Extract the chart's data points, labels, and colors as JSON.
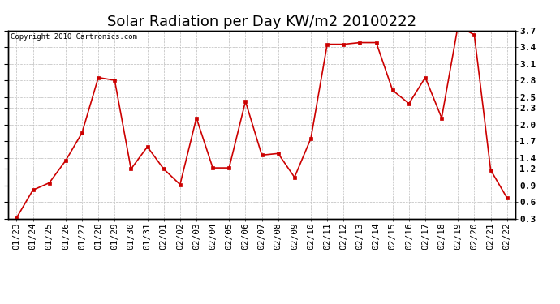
{
  "title": "Solar Radiation per Day KW/m2 20100222",
  "copyright_text": "Copyright 2010 Cartronics.com",
  "dates": [
    "01/23",
    "01/24",
    "01/25",
    "01/26",
    "01/27",
    "01/28",
    "01/29",
    "01/30",
    "01/31",
    "02/01",
    "02/02",
    "02/03",
    "02/04",
    "02/05",
    "02/06",
    "02/07",
    "02/08",
    "02/09",
    "02/10",
    "02/11",
    "02/12",
    "02/13",
    "02/14",
    "02/15",
    "02/16",
    "02/17",
    "02/18",
    "02/19",
    "02/20",
    "02/21",
    "02/22"
  ],
  "values": [
    0.32,
    0.82,
    0.95,
    1.35,
    1.85,
    2.85,
    2.8,
    1.2,
    1.6,
    1.2,
    0.92,
    2.12,
    1.22,
    1.22,
    2.42,
    1.45,
    1.48,
    1.05,
    1.75,
    3.45,
    3.45,
    3.48,
    3.48,
    2.62,
    2.38,
    2.85,
    2.12,
    3.78,
    3.62,
    1.18,
    0.68
  ],
  "line_color": "#cc0000",
  "marker_color": "#cc0000",
  "marker": "s",
  "marker_size": 2.5,
  "line_width": 1.2,
  "bg_color": "#ffffff",
  "grid_color": "#bbbbbb",
  "ylim_min": 0.3,
  "ylim_max": 3.7,
  "yticks": [
    0.3,
    0.6,
    0.9,
    1.2,
    1.4,
    1.7,
    2.0,
    2.3,
    2.5,
    2.8,
    3.1,
    3.4,
    3.7
  ],
  "title_fontsize": 13,
  "copyright_fontsize": 6.5,
  "tick_fontsize": 8,
  "border_color": "#000000"
}
